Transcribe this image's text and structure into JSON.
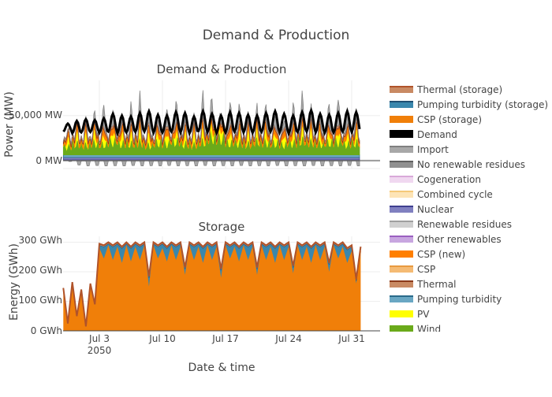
{
  "figure": {
    "title": "Demand & Production",
    "xaxis_title": "Date & time",
    "x_ticks": [
      "Jul 3",
      "Jul 10",
      "Jul 17",
      "Jul 24",
      "Jul 31"
    ],
    "x_year_label": "2050"
  },
  "legend": {
    "items": [
      {
        "name": "Thermal (storage)",
        "color": "#b0532a",
        "fill": "#c98a63"
      },
      {
        "name": "Pumping turbidity (storage)",
        "color": "#1f4f73",
        "fill": "#3a87ad"
      },
      {
        "name": "CSP (storage)",
        "color": "#f07f09",
        "fill": "#f07f09"
      },
      {
        "name": "Demand",
        "color": "#000000",
        "fill": "#000000"
      },
      {
        "name": "Import",
        "color": "#808080",
        "fill": "#a8a8a8"
      },
      {
        "name": "No renewable residues",
        "color": "#606060",
        "fill": "#909090"
      },
      {
        "name": "Cogeneration",
        "color": "#d9a9d9",
        "fill": "#f0d8f0"
      },
      {
        "name": "Combined cycle",
        "color": "#f5c97a",
        "fill": "#fde4b6"
      },
      {
        "name": "Nuclear",
        "color": "#3f3f8f",
        "fill": "#8080c0"
      },
      {
        "name": "Renewable residues",
        "color": "#a0a0a0",
        "fill": "#d0d0d0"
      },
      {
        "name": "Other renewables",
        "color": "#9a5fc0",
        "fill": "#c8a6e0"
      },
      {
        "name": "CSP (new)",
        "color": "#ff7f00",
        "fill": "#ff7f00"
      },
      {
        "name": "CSP",
        "color": "#e89a40",
        "fill": "#f5bb74"
      },
      {
        "name": "Thermal",
        "color": "#8b3a1a",
        "fill": "#c98a63"
      },
      {
        "name": "Pumping turbidity",
        "color": "#2a6a8a",
        "fill": "#6aa7c3"
      },
      {
        "name": "PV",
        "color": "#ffff00",
        "fill": "#ffff00"
      },
      {
        "name": "Wind",
        "color": "#6aaa1a",
        "fill": "#6aaa1a"
      }
    ]
  },
  "chart_data": [
    {
      "type": "area",
      "title": "Demand & Production",
      "ylabel": "Power (MW)",
      "y_ticks": [
        "50,000 MW",
        "0 MW"
      ],
      "x_range": [
        "2050-06-28",
        "2050-08-01"
      ],
      "ylim": [
        -10000,
        90000
      ],
      "daily": {
        "x": [
          "2050-06-29",
          "2050-06-30",
          "2050-07-01",
          "2050-07-02",
          "2050-07-03",
          "2050-07-04",
          "2050-07-05",
          "2050-07-06",
          "2050-07-07",
          "2050-07-08",
          "2050-07-09",
          "2050-07-10",
          "2050-07-11",
          "2050-07-12",
          "2050-07-13",
          "2050-07-14",
          "2050-07-15",
          "2050-07-16",
          "2050-07-17",
          "2050-07-18",
          "2050-07-19",
          "2050-07-20",
          "2050-07-21",
          "2050-07-22",
          "2050-07-23",
          "2050-07-24",
          "2050-07-25",
          "2050-07-26",
          "2050-07-27",
          "2050-07-28",
          "2050-07-29",
          "2050-07-30",
          "2050-07-31",
          "2050-08-01"
        ],
        "demand_min": [
          32000,
          30000,
          31000,
          31500,
          30500,
          32000,
          30000,
          31000,
          31500,
          32000,
          30500,
          31000,
          32000,
          31000,
          30000,
          32500,
          31500,
          30500,
          31000,
          32000,
          31000,
          30500,
          31500,
          32000,
          31000,
          30000,
          31500,
          32000,
          31000,
          30500,
          31000,
          32000,
          31500,
          36000
        ],
        "demand_max": [
          41000,
          44000,
          46000,
          45000,
          47000,
          52000,
          50000,
          49000,
          53000,
          55000,
          51000,
          50000,
          54000,
          53000,
          49000,
          55000,
          52000,
          50000,
          54000,
          53000,
          51000,
          50000,
          53000,
          55000,
          52000,
          50000,
          54000,
          56000,
          52000,
          51000,
          53000,
          55000,
          54000,
          44000
        ],
        "wind": [
          14000,
          18000,
          16000,
          20000,
          17000,
          22000,
          19000,
          18000,
          21000,
          16000,
          20000,
          19000,
          22000,
          18000,
          17000,
          21000,
          30000,
          28000,
          19000,
          20000,
          18000,
          22000,
          21000,
          19000,
          17000,
          20000,
          23000,
          21000,
          19000,
          20000,
          22000,
          18000,
          20000,
          16000
        ],
        "pv_peak": [
          10000,
          12000,
          12500,
          13000,
          12000,
          12500,
          13000,
          12000,
          13000,
          12500,
          12000,
          13000,
          12500,
          12000,
          12500,
          13000,
          12000,
          12500,
          13000,
          12000,
          12500,
          12000,
          13000,
          12500,
          12000,
          12500,
          13000,
          12500,
          12000,
          13000,
          12500,
          12000,
          12500,
          6000
        ],
        "csp_peak": [
          6000,
          7000,
          7500,
          7000,
          8000,
          7500,
          8000,
          7000,
          7500,
          8000,
          7000,
          7500,
          8000,
          7500,
          7000,
          8000,
          7500,
          7000,
          8000,
          7500,
          7000,
          7500,
          8000,
          7000,
          7500,
          8000,
          7000,
          7500,
          8000,
          7000,
          7500,
          8000,
          7500,
          4000
        ],
        "import_peak": [
          0,
          0,
          5000,
          12000,
          25000,
          18000,
          8000,
          22000,
          28000,
          15000,
          6000,
          20000,
          25000,
          12000,
          8000,
          30000,
          22000,
          10000,
          26000,
          20000,
          9000,
          15000,
          18000,
          12000,
          8000,
          22000,
          28000,
          14000,
          10000,
          24000,
          30000,
          20000,
          12000,
          0
        ],
        "pumping_neg": [
          -2000,
          -6000,
          -7000,
          -6500,
          -7000,
          -6800,
          -7000,
          -6500,
          -7000,
          -6800,
          -7000,
          -6500,
          -7000,
          -6800,
          -7000,
          -6500,
          -7000,
          -6800,
          -7000,
          -6500,
          -7000,
          -6800,
          -7000,
          -6500,
          -7000,
          -6800,
          -7000,
          -6500,
          -7000,
          -6800,
          -7000,
          -6500,
          -7000,
          -3000
        ]
      }
    },
    {
      "type": "area",
      "title": "Storage",
      "ylabel": "Energy (GWh)",
      "y_ticks": [
        "300 GWh",
        "200 GWh",
        "100 GWh",
        "0 GWh"
      ],
      "ylim": [
        0,
        320
      ],
      "x_range": [
        "2050-06-28",
        "2050-08-01"
      ],
      "x": [
        "2050-06-29T00",
        "2050-06-29T12",
        "2050-06-30T00",
        "2050-06-30T12",
        "2050-07-01T00",
        "2050-07-01T12",
        "2050-07-02T00",
        "2050-07-02T12",
        "2050-07-03T00",
        "2050-07-03T12",
        "2050-07-04T00",
        "2050-07-04T12",
        "2050-07-05T00",
        "2050-07-05T12",
        "2050-07-06T00",
        "2050-07-06T12",
        "2050-07-07T00",
        "2050-07-07T12",
        "2050-07-08T00",
        "2050-07-08T12",
        "2050-07-09T00",
        "2050-07-09T12",
        "2050-07-10T00",
        "2050-07-10T12",
        "2050-07-11T00",
        "2050-07-11T12",
        "2050-07-12T00",
        "2050-07-12T12",
        "2050-07-13T00",
        "2050-07-13T12",
        "2050-07-14T00",
        "2050-07-14T12",
        "2050-07-15T00",
        "2050-07-15T12",
        "2050-07-16T00",
        "2050-07-16T12",
        "2050-07-17T00",
        "2050-07-17T12",
        "2050-07-18T00",
        "2050-07-18T12",
        "2050-07-19T00",
        "2050-07-19T12",
        "2050-07-20T00",
        "2050-07-20T12",
        "2050-07-21T00",
        "2050-07-21T12",
        "2050-07-22T00",
        "2050-07-22T12",
        "2050-07-23T00",
        "2050-07-23T12",
        "2050-07-24T00",
        "2050-07-24T12",
        "2050-07-25T00",
        "2050-07-25T12",
        "2050-07-26T00",
        "2050-07-26T12",
        "2050-07-27T00",
        "2050-07-27T12",
        "2050-07-28T00",
        "2050-07-28T12",
        "2050-07-29T00",
        "2050-07-29T12",
        "2050-07-30T00",
        "2050-07-30T12",
        "2050-07-31T00",
        "2050-07-31T12",
        "2050-08-01T00"
      ],
      "series": [
        {
          "name": "CSP (storage)",
          "values": [
            145,
            25,
            165,
            50,
            140,
            15,
            160,
            90,
            280,
            245,
            290,
            240,
            285,
            230,
            290,
            235,
            285,
            240,
            290,
            150,
            290,
            245,
            280,
            235,
            290,
            240,
            285,
            190,
            290,
            240,
            285,
            230,
            290,
            240,
            285,
            180,
            290,
            245,
            285,
            235,
            290,
            240,
            285,
            190,
            290,
            240,
            285,
            230,
            290,
            240,
            285,
            195,
            290,
            240,
            285,
            230,
            290,
            240,
            285,
            200,
            290,
            245,
            285,
            230,
            270,
            160,
            270
          ]
        },
        {
          "name": "Pumping turbidity (storage)",
          "values": [
            0,
            0,
            0,
            0,
            0,
            0,
            0,
            0,
            10,
            40,
            5,
            45,
            10,
            50,
            5,
            45,
            10,
            45,
            5,
            30,
            5,
            40,
            15,
            45,
            5,
            45,
            10,
            20,
            5,
            45,
            10,
            50,
            5,
            45,
            10,
            25,
            5,
            40,
            10,
            45,
            5,
            45,
            10,
            20,
            5,
            45,
            10,
            50,
            5,
            45,
            10,
            20,
            5,
            45,
            10,
            50,
            5,
            45,
            10,
            25,
            5,
            40,
            10,
            45,
            15,
            10,
            10
          ]
        },
        {
          "name": "Thermal (storage)",
          "values": [
            0,
            0,
            0,
            0,
            0,
            0,
            0,
            0,
            5,
            5,
            5,
            5,
            5,
            5,
            5,
            5,
            5,
            5,
            5,
            5,
            5,
            5,
            5,
            5,
            5,
            5,
            5,
            5,
            5,
            5,
            5,
            5,
            5,
            5,
            5,
            5,
            5,
            5,
            5,
            5,
            5,
            5,
            5,
            5,
            5,
            5,
            5,
            5,
            5,
            5,
            5,
            5,
            5,
            5,
            5,
            5,
            5,
            5,
            5,
            5,
            5,
            5,
            5,
            5,
            5,
            5,
            5
          ]
        }
      ]
    }
  ]
}
